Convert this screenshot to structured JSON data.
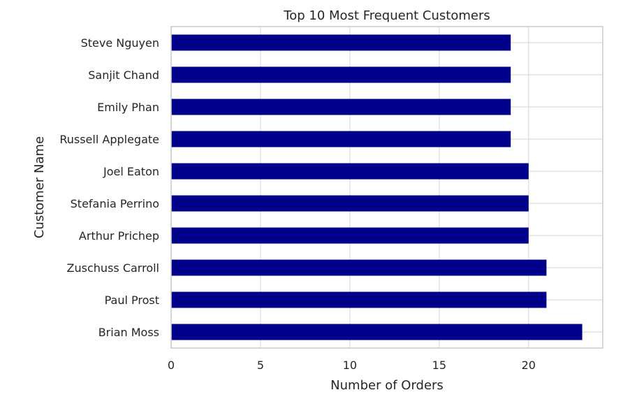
{
  "chart_data": {
    "type": "bar",
    "orientation": "horizontal",
    "title": "Top 10 Most Frequent Customers",
    "xlabel": "Number of Orders",
    "ylabel": "Customer Name",
    "categories": [
      "Brian Moss",
      "Paul Prost",
      "Zuschuss Carroll",
      "Arthur Prichep",
      "Stefania Perrino",
      "Joel Eaton",
      "Russell Applegate",
      "Emily Phan",
      "Sanjit Chand",
      "Steve Nguyen"
    ],
    "values": [
      23,
      21,
      21,
      20,
      20,
      20,
      19,
      19,
      19,
      19
    ],
    "xlim": [
      0,
      24.15
    ],
    "xticks": [
      0,
      5,
      10,
      15,
      20
    ],
    "bar_color": "#00008b",
    "grid": true
  }
}
